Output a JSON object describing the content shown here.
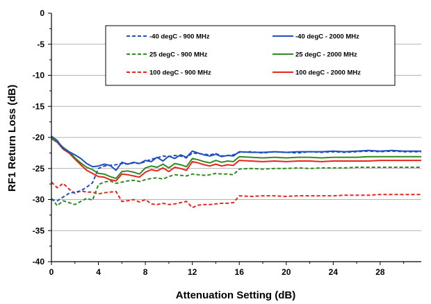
{
  "chart_data": {
    "type": "line",
    "title": "",
    "xlabel": "Attenuation Setting (dB)",
    "ylabel": "RF1 Return Loss (dB)",
    "xlim": [
      0,
      31.5
    ],
    "ylim": [
      -40,
      0
    ],
    "xticks": [
      0,
      4,
      8,
      12,
      16,
      20,
      24,
      28
    ],
    "yticks": [
      0,
      -5,
      -10,
      -15,
      -20,
      -25,
      -30,
      -35,
      -40
    ],
    "grid": "horizontal",
    "legend_position": "top-center",
    "series": [
      {
        "name": "-40 degC - 900 MHz",
        "color": "#1f4fbf",
        "dash": "dashed",
        "x": [
          0,
          0.5,
          1,
          1.5,
          2,
          2.5,
          3,
          3.5,
          4,
          4.5,
          5,
          5.5,
          6,
          6.5,
          7,
          7.5,
          8,
          8.5,
          9,
          9.5,
          10,
          10.5,
          11,
          11.5,
          12,
          12.5,
          13,
          13.5,
          14,
          14.5,
          15,
          15.5,
          16,
          17,
          18,
          19,
          20,
          21,
          22,
          23,
          24,
          25,
          26,
          27,
          28,
          29,
          30,
          31.5
        ],
        "y": [
          -30.0,
          -30.2,
          -29.6,
          -29.0,
          -28.8,
          -28.6,
          -28.0,
          -27.3,
          -25.0,
          -24.6,
          -24.5,
          -24.4,
          -24.2,
          -24.3,
          -24.1,
          -24.2,
          -23.9,
          -23.5,
          -23.3,
          -23.0,
          -23.1,
          -22.9,
          -23.0,
          -23.3,
          -22.5,
          -22.6,
          -22.7,
          -22.8,
          -22.6,
          -23.0,
          -22.9,
          -22.8,
          -22.4,
          -22.3,
          -22.5,
          -22.3,
          -22.4,
          -22.5,
          -22.3,
          -22.4,
          -22.3,
          -22.4,
          -22.3,
          -22.2,
          -22.3,
          -22.2,
          -22.3,
          -22.3
        ]
      },
      {
        "name": "-40 degC - 2000 MHz",
        "color": "#1f4fbf",
        "dash": "solid",
        "x": [
          0,
          0.5,
          1,
          1.5,
          2,
          2.5,
          3,
          3.5,
          4,
          4.5,
          5,
          5.5,
          6,
          6.5,
          7,
          7.5,
          8,
          8.5,
          9,
          9.5,
          10,
          10.5,
          11,
          11.5,
          12,
          12.5,
          13,
          13.5,
          14,
          14.5,
          15,
          15.5,
          16,
          17,
          18,
          19,
          20,
          21,
          22,
          23,
          24,
          25,
          26,
          27,
          28,
          29,
          30,
          31.5
        ],
        "y": [
          -19.8,
          -20.5,
          -21.8,
          -22.3,
          -22.8,
          -23.4,
          -24.2,
          -24.7,
          -24.6,
          -24.3,
          -24.5,
          -25.3,
          -24.0,
          -24.3,
          -24.0,
          -24.2,
          -23.7,
          -23.9,
          -23.2,
          -23.8,
          -23.0,
          -23.4,
          -22.8,
          -23.2,
          -22.2,
          -22.5,
          -22.8,
          -23.0,
          -22.7,
          -23.1,
          -22.9,
          -23.0,
          -22.3,
          -22.4,
          -22.4,
          -22.3,
          -22.4,
          -22.3,
          -22.3,
          -22.3,
          -22.2,
          -22.3,
          -22.2,
          -22.1,
          -22.2,
          -22.1,
          -22.2,
          -22.2
        ]
      },
      {
        "name": "25 degC - 900 MHz",
        "color": "#2e8b22",
        "dash": "dashed",
        "x": [
          0,
          0.5,
          1,
          1.5,
          2,
          2.5,
          3,
          3.5,
          4,
          4.5,
          5,
          5.5,
          6,
          6.5,
          7,
          7.5,
          8,
          8.5,
          9,
          9.5,
          10,
          10.5,
          11,
          11.5,
          12,
          12.5,
          13,
          13.5,
          14,
          14.5,
          15,
          15.5,
          16,
          17,
          18,
          19,
          20,
          21,
          22,
          23,
          24,
          25,
          26,
          27,
          28,
          29,
          30,
          31.5
        ],
        "y": [
          -29.8,
          -31.0,
          -30.2,
          -30.5,
          -30.8,
          -30.3,
          -29.8,
          -30.1,
          -27.6,
          -27.2,
          -27.0,
          -27.4,
          -27.2,
          -27.0,
          -26.9,
          -27.1,
          -26.8,
          -26.6,
          -26.5,
          -26.7,
          -26.3,
          -26.0,
          -26.1,
          -26.2,
          -25.9,
          -26.0,
          -26.1,
          -26.0,
          -25.8,
          -25.9,
          -25.9,
          -26.0,
          -25.1,
          -25.0,
          -25.1,
          -25.0,
          -25.0,
          -24.9,
          -25.0,
          -24.9,
          -24.9,
          -24.9,
          -24.8,
          -24.8,
          -24.8,
          -24.8,
          -24.8,
          -24.8
        ]
      },
      {
        "name": "25 degC - 2000 MHz",
        "color": "#2e8b22",
        "dash": "solid",
        "x": [
          0,
          0.5,
          1,
          1.5,
          2,
          2.5,
          3,
          3.5,
          4,
          4.5,
          5,
          5.5,
          6,
          6.5,
          7,
          7.5,
          8,
          8.5,
          9,
          9.5,
          10,
          10.5,
          11,
          11.5,
          12,
          12.5,
          13,
          13.5,
          14,
          14.5,
          15,
          15.5,
          16,
          17,
          18,
          19,
          20,
          21,
          22,
          23,
          24,
          25,
          26,
          27,
          28,
          29,
          30,
          31.5
        ],
        "y": [
          -20.1,
          -20.7,
          -21.6,
          -22.3,
          -23.3,
          -24.1,
          -24.8,
          -25.2,
          -25.8,
          -25.9,
          -26.3,
          -26.6,
          -25.5,
          -25.4,
          -25.6,
          -25.9,
          -24.9,
          -24.6,
          -24.8,
          -24.3,
          -24.9,
          -24.2,
          -24.4,
          -24.7,
          -23.4,
          -23.6,
          -23.9,
          -24.1,
          -23.7,
          -24.0,
          -23.8,
          -23.9,
          -23.1,
          -23.2,
          -23.3,
          -23.2,
          -23.3,
          -23.2,
          -23.2,
          -23.3,
          -23.2,
          -23.2,
          -23.2,
          -23.1,
          -23.1,
          -23.1,
          -23.1,
          -23.1
        ]
      },
      {
        "name": "100 degC - 900 MHz",
        "color": "#e8231a",
        "dash": "dashed",
        "x": [
          0,
          0.5,
          1,
          1.5,
          2,
          2.5,
          3,
          3.5,
          4,
          4.5,
          5,
          5.5,
          6,
          6.5,
          7,
          7.5,
          8,
          8.5,
          9,
          9.5,
          10,
          10.5,
          11,
          11.5,
          12,
          12.5,
          13,
          13.5,
          14,
          14.5,
          15,
          15.5,
          16,
          17,
          18,
          19,
          20,
          21,
          22,
          23,
          24,
          25,
          26,
          27,
          28,
          29,
          30,
          31.5
        ],
        "y": [
          -27.2,
          -28.1,
          -27.4,
          -28.3,
          -29.0,
          -28.6,
          -28.8,
          -28.8,
          -29.1,
          -28.9,
          -28.8,
          -28.7,
          -30.3,
          -30.2,
          -30.0,
          -30.4,
          -30.0,
          -30.7,
          -30.8,
          -30.6,
          -30.8,
          -30.7,
          -30.5,
          -30.3,
          -31.3,
          -30.9,
          -30.8,
          -30.8,
          -30.7,
          -30.6,
          -30.6,
          -30.5,
          -29.4,
          -29.5,
          -29.4,
          -29.4,
          -29.5,
          -29.4,
          -29.4,
          -29.4,
          -29.4,
          -29.3,
          -29.3,
          -29.3,
          -29.2,
          -29.2,
          -29.2,
          -29.2
        ]
      },
      {
        "name": "100 degC - 2000 MHz",
        "color": "#e8231a",
        "dash": "solid",
        "x": [
          0,
          0.5,
          1,
          1.5,
          2,
          2.5,
          3,
          3.5,
          4,
          4.5,
          5,
          5.5,
          6,
          6.5,
          7,
          7.5,
          8,
          8.5,
          9,
          9.5,
          10,
          10.5,
          11,
          11.5,
          12,
          12.5,
          13,
          13.5,
          14,
          14.5,
          15,
          15.5,
          16,
          17,
          18,
          19,
          20,
          21,
          22,
          23,
          24,
          25,
          26,
          27,
          28,
          29,
          30,
          31.5
        ],
        "y": [
          -20.2,
          -20.8,
          -21.9,
          -22.5,
          -23.5,
          -24.4,
          -25.3,
          -25.8,
          -26.3,
          -26.4,
          -26.8,
          -27.0,
          -25.9,
          -26.0,
          -26.2,
          -26.4,
          -25.6,
          -25.2,
          -25.4,
          -24.9,
          -25.5,
          -24.8,
          -25.0,
          -25.3,
          -23.9,
          -24.1,
          -24.4,
          -24.6,
          -24.3,
          -24.6,
          -24.4,
          -24.5,
          -23.7,
          -23.8,
          -23.9,
          -23.8,
          -23.9,
          -23.8,
          -23.8,
          -23.9,
          -23.8,
          -23.8,
          -23.8,
          -23.8,
          -23.7,
          -23.7,
          -23.7,
          -23.7
        ]
      }
    ]
  }
}
